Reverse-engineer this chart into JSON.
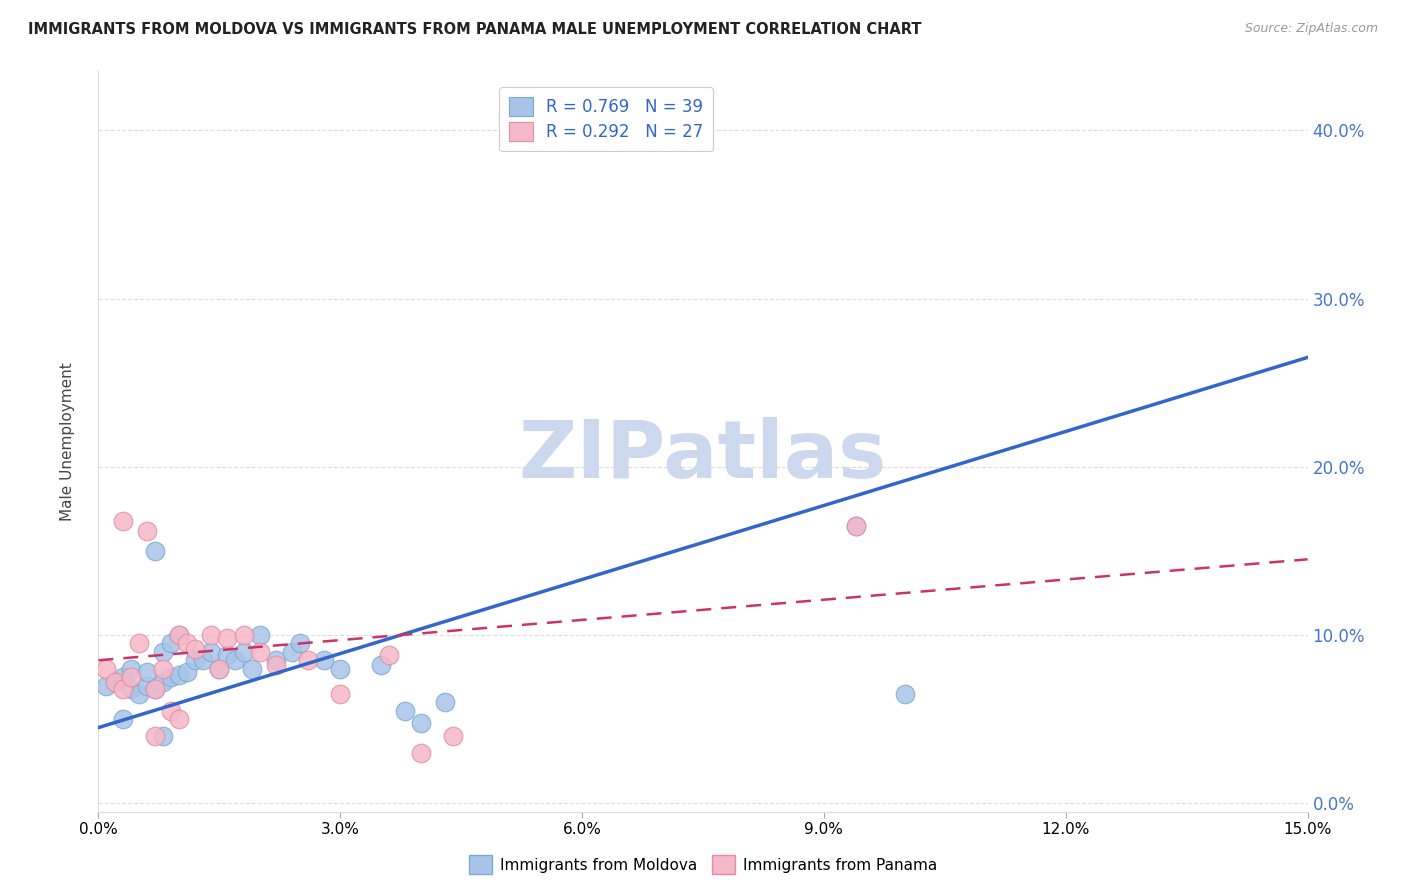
{
  "title": "IMMIGRANTS FROM MOLDOVA VS IMMIGRANTS FROM PANAMA MALE UNEMPLOYMENT CORRELATION CHART",
  "source": "Source: ZipAtlas.com",
  "ylabel": "Male Unemployment",
  "xlim": [
    0.0,
    0.15
  ],
  "ylim": [
    -0.005,
    0.435
  ],
  "yticks": [
    0.0,
    0.1,
    0.2,
    0.3,
    0.4
  ],
  "xticks": [
    0.0,
    0.03,
    0.06,
    0.09,
    0.12,
    0.15
  ],
  "xtick_labels": [
    "0.0%",
    "3.0%",
    "6.0%",
    "9.0%",
    "12.0%",
    "15.0%"
  ],
  "ytick_labels": [
    "0.0%",
    "10.0%",
    "20.0%",
    "30.0%",
    "40.0%"
  ],
  "moldova_color": "#a8c4e8",
  "moldova_edge": "#7aaad4",
  "panama_color": "#f5b8c8",
  "panama_edge": "#e88aa0",
  "trendline_moldova_color": "#3366cc",
  "trendline_panama_color": "#cc3366",
  "moldova_trend_x": [
    0.0,
    0.15
  ],
  "moldova_trend_y": [
    0.045,
    0.265
  ],
  "panama_trend_x": [
    0.0,
    0.15
  ],
  "panama_trend_y": [
    0.085,
    0.145
  ],
  "moldova_x": [
    0.001,
    0.002,
    0.003,
    0.004,
    0.004,
    0.005,
    0.006,
    0.006,
    0.007,
    0.007,
    0.008,
    0.008,
    0.009,
    0.009,
    0.01,
    0.01,
    0.011,
    0.012,
    0.013,
    0.014,
    0.015,
    0.016,
    0.017,
    0.018,
    0.019,
    0.02,
    0.022,
    0.024,
    0.025,
    0.028,
    0.03,
    0.035,
    0.038,
    0.04,
    0.043,
    0.094,
    0.1,
    0.003,
    0.008
  ],
  "moldova_y": [
    0.07,
    0.072,
    0.075,
    0.068,
    0.08,
    0.065,
    0.07,
    0.078,
    0.068,
    0.15,
    0.072,
    0.09,
    0.075,
    0.095,
    0.076,
    0.1,
    0.078,
    0.085,
    0.085,
    0.09,
    0.08,
    0.088,
    0.085,
    0.09,
    0.08,
    0.1,
    0.085,
    0.09,
    0.095,
    0.085,
    0.08,
    0.082,
    0.055,
    0.048,
    0.06,
    0.165,
    0.065,
    0.05,
    0.04
  ],
  "panama_x": [
    0.001,
    0.002,
    0.003,
    0.004,
    0.005,
    0.006,
    0.007,
    0.008,
    0.009,
    0.01,
    0.011,
    0.012,
    0.014,
    0.015,
    0.016,
    0.018,
    0.02,
    0.022,
    0.026,
    0.03,
    0.036,
    0.04,
    0.044,
    0.094,
    0.003,
    0.007,
    0.01
  ],
  "panama_y": [
    0.08,
    0.072,
    0.068,
    0.075,
    0.095,
    0.162,
    0.068,
    0.08,
    0.055,
    0.1,
    0.095,
    0.092,
    0.1,
    0.08,
    0.098,
    0.1,
    0.09,
    0.082,
    0.085,
    0.065,
    0.088,
    0.03,
    0.04,
    0.165,
    0.168,
    0.04,
    0.05
  ],
  "watermark_text": "ZIPatlas",
  "watermark_color": "#ccd8ee",
  "background_color": "#ffffff",
  "grid_color": "#dddddd"
}
